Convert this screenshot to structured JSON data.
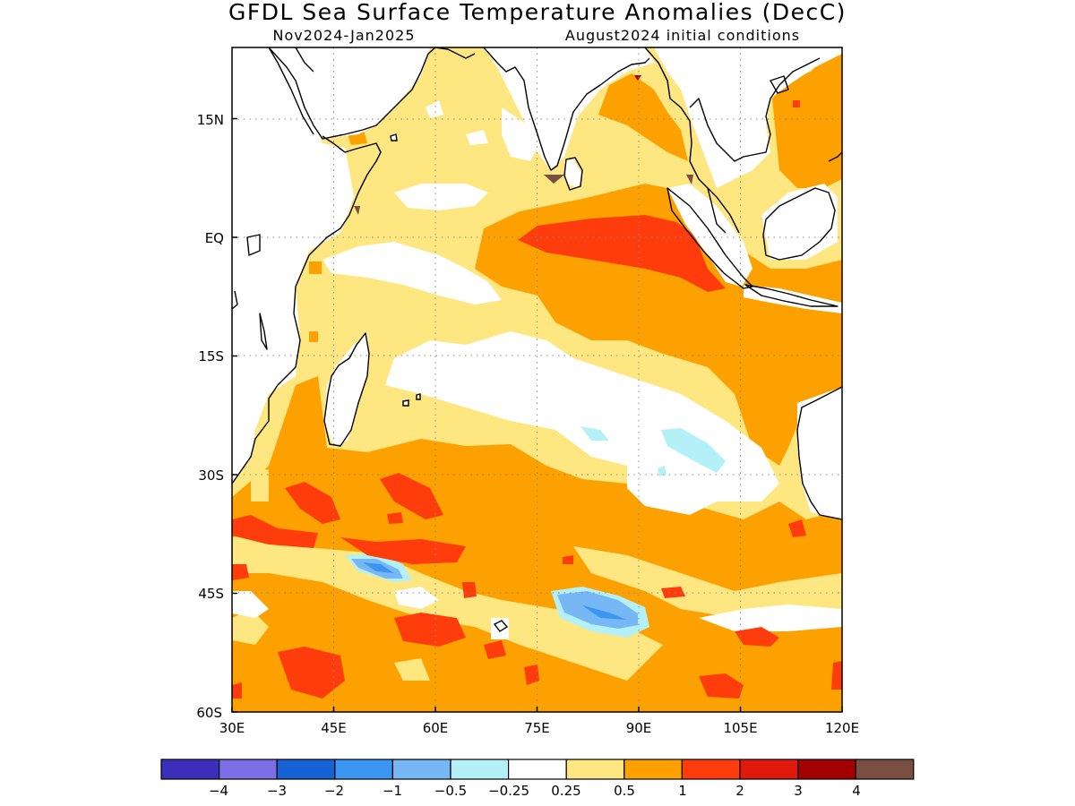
{
  "title": "GFDL Sea Surface Temperature Anomalies (DecC)",
  "subtitle_left": "Nov2024-Jan2025",
  "subtitle_right": "August2024 initial conditions",
  "colors": {
    "lt_-4": "#3c2fbb",
    "m4_m3": "#7b6ee6",
    "m3_m2": "#1761d6",
    "m2_m1": "#3c95f1",
    "m1_m05": "#78b7f5",
    "m05_m025": "#b3f0f8",
    "neutral": "#ffffff",
    "p025_p05": "#fee680",
    "p05_p1": "#fda101",
    "p1_p2": "#fe3c0c",
    "p2_p3": "#df1a0a",
    "p3_p4": "#a30000",
    "gt_p4": "#7a4f43"
  },
  "chart_data": {
    "type": "heatmap",
    "variable": "Sea Surface Temperature Anomalies",
    "units": "DecC",
    "period": "Nov2024-Jan2025",
    "initial_conditions": "August2024",
    "lon_range": [
      30,
      120
    ],
    "lat_range": [
      -60,
      24
    ],
    "x_ticks": [
      "30E",
      "45E",
      "60E",
      "75E",
      "90E",
      "105E",
      "120E"
    ],
    "x_tick_values": [
      30,
      45,
      60,
      75,
      90,
      105,
      120
    ],
    "y_ticks": [
      "15N",
      "EQ",
      "15S",
      "30S",
      "45S",
      "60S"
    ],
    "y_tick_values": [
      15,
      0,
      -15,
      -30,
      -45,
      -60
    ],
    "grid": true,
    "colorbar": {
      "labels": [
        "-4",
        "-3",
        "-2",
        "-1",
        "-0.5",
        "-0.25",
        "0.25",
        "0.5",
        "1",
        "2",
        "3",
        "4"
      ],
      "bins": 13,
      "placement": "bottom"
    }
  }
}
